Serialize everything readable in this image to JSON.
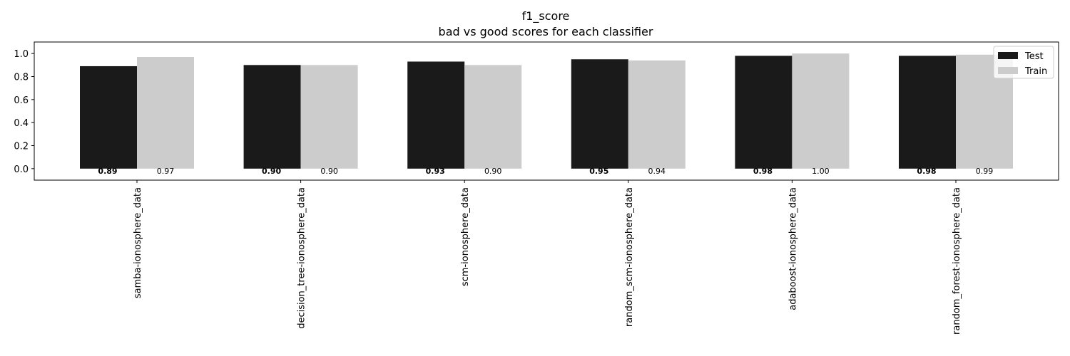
{
  "chart_data": {
    "type": "bar",
    "title": "f1_score",
    "subtitle": "bad vs good scores for each classifier",
    "xlabel": "",
    "ylabel": "",
    "ylim": [
      -0.1,
      1.1
    ],
    "yticks": [
      "0.0",
      "0.2",
      "0.4",
      "0.6",
      "0.8",
      "1.0"
    ],
    "categories": [
      "samba-ionosphere_data",
      "decision_tree-ionosphere_data",
      "scm-ionosphere_data",
      "random_scm-ionosphere_data",
      "adaboost-ionosphere_data",
      "random_forest-ionosphere_data"
    ],
    "series": [
      {
        "name": "Test",
        "color": "#1a1a1a",
        "values": [
          0.89,
          0.9,
          0.93,
          0.95,
          0.98,
          0.98
        ],
        "labels": [
          "0.89",
          "0.90",
          "0.93",
          "0.95",
          "0.98",
          "0.98"
        ]
      },
      {
        "name": "Train",
        "color": "#cccccc",
        "values": [
          0.97,
          0.9,
          0.9,
          0.94,
          1.0,
          0.99
        ],
        "labels": [
          "0.97",
          "0.90",
          "0.90",
          "0.94",
          "1.00",
          "0.99"
        ]
      }
    ],
    "grid": false,
    "legend_position": "top-right"
  }
}
